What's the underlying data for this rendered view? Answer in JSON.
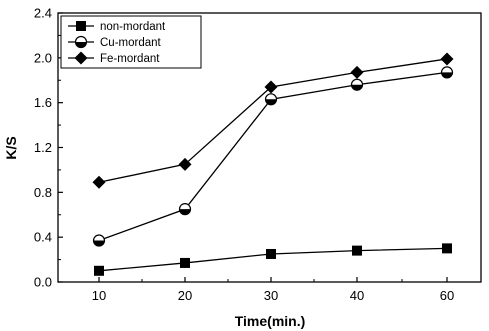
{
  "chart_data": {
    "type": "line",
    "categories": [
      "10",
      "20",
      "30",
      "40",
      "60"
    ],
    "xlabel": "Time(min.)",
    "ylabel": "K/S",
    "ylim": [
      0.0,
      2.4
    ],
    "yticks": [
      "0.0",
      "0.4",
      "0.8",
      "1.2",
      "1.6",
      "2.0",
      "2.4"
    ],
    "grid": false,
    "legend_position": "top-left",
    "series": [
      {
        "name": "non-mordant",
        "marker": "square",
        "color": "#000000",
        "values": [
          0.1,
          0.17,
          0.25,
          0.28,
          0.3
        ]
      },
      {
        "name": "Cu-mordant",
        "marker": "half-filled-circle",
        "color": "#000000",
        "values": [
          0.37,
          0.65,
          1.63,
          1.76,
          1.87
        ]
      },
      {
        "name": "Fe-mordant",
        "marker": "diamond",
        "color": "#000000",
        "values": [
          0.89,
          1.05,
          1.74,
          1.87,
          1.99
        ]
      }
    ]
  }
}
